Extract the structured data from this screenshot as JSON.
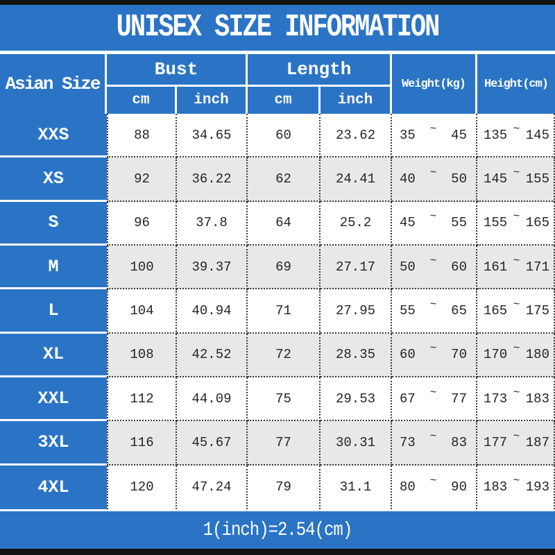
{
  "colors": {
    "blue": "#2b74c5",
    "row_alt": "#e9e8e8",
    "frame_bar": "#141414"
  },
  "chart_data": {
    "type": "table",
    "title": "UNISEX SIZE INFORMATION",
    "footer_note": "1(inch)=2.54(cm)",
    "range_separator": "~",
    "header": {
      "row_header": "Asian Size",
      "bust_group": "Bust",
      "length_group": "Length",
      "cm": "cm",
      "inch": "inch",
      "weight": "Weight(kg)",
      "height": "Height(cm)"
    },
    "rows": [
      {
        "size": "XXS",
        "bust_cm": "88",
        "bust_inch": "34.65",
        "length_cm": "60",
        "length_inch": "23.62",
        "weight_min": "35",
        "weight_max": "45",
        "height_min": "135",
        "height_max": "145"
      },
      {
        "size": "XS",
        "bust_cm": "92",
        "bust_inch": "36.22",
        "length_cm": "62",
        "length_inch": "24.41",
        "weight_min": "40",
        "weight_max": "50",
        "height_min": "145",
        "height_max": "155"
      },
      {
        "size": "S",
        "bust_cm": "96",
        "bust_inch": "37.8",
        "length_cm": "64",
        "length_inch": "25.2",
        "weight_min": "45",
        "weight_max": "55",
        "height_min": "155",
        "height_max": "165"
      },
      {
        "size": "M",
        "bust_cm": "100",
        "bust_inch": "39.37",
        "length_cm": "69",
        "length_inch": "27.17",
        "weight_min": "50",
        "weight_max": "60",
        "height_min": "161",
        "height_max": "171"
      },
      {
        "size": "L",
        "bust_cm": "104",
        "bust_inch": "40.94",
        "length_cm": "71",
        "length_inch": "27.95",
        "weight_min": "55",
        "weight_max": "65",
        "height_min": "165",
        "height_max": "175"
      },
      {
        "size": "XL",
        "bust_cm": "108",
        "bust_inch": "42.52",
        "length_cm": "72",
        "length_inch": "28.35",
        "weight_min": "60",
        "weight_max": "70",
        "height_min": "170",
        "height_max": "180"
      },
      {
        "size": "XXL",
        "bust_cm": "112",
        "bust_inch": "44.09",
        "length_cm": "75",
        "length_inch": "29.53",
        "weight_min": "67",
        "weight_max": "77",
        "height_min": "173",
        "height_max": "183"
      },
      {
        "size": "3XL",
        "bust_cm": "116",
        "bust_inch": "45.67",
        "length_cm": "77",
        "length_inch": "30.31",
        "weight_min": "73",
        "weight_max": "83",
        "height_min": "177",
        "height_max": "187"
      },
      {
        "size": "4XL",
        "bust_cm": "120",
        "bust_inch": "47.24",
        "length_cm": "79",
        "length_inch": "31.1",
        "weight_min": "80",
        "weight_max": "90",
        "height_min": "183",
        "height_max": "193"
      }
    ]
  }
}
